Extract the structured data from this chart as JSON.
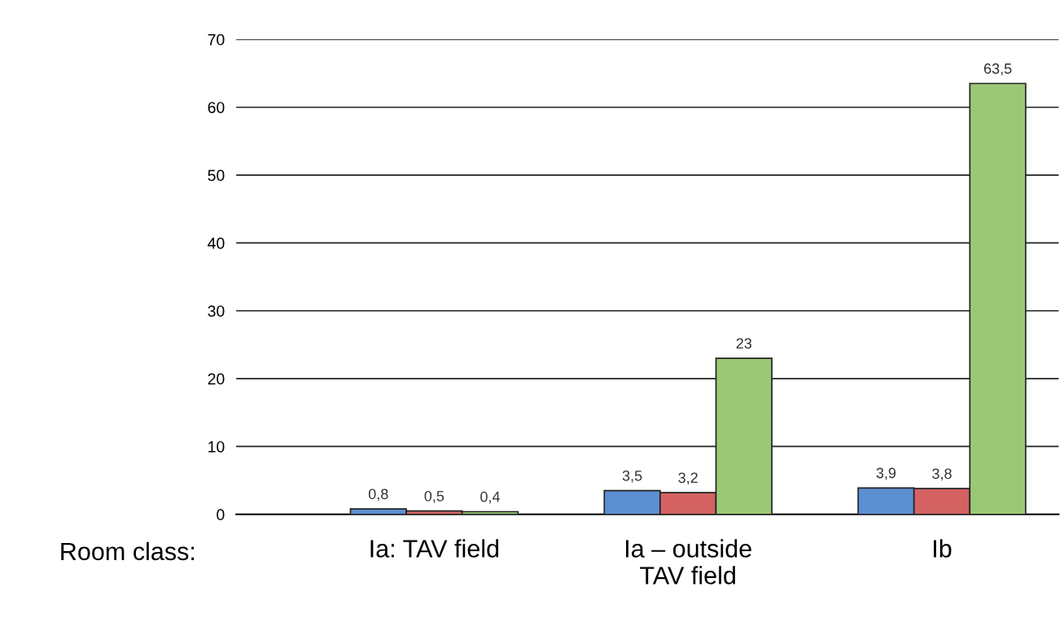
{
  "chart_data": {
    "type": "bar",
    "categories": [
      "Ia: TAV field",
      "Ia – outside\nTAV field",
      "Ib"
    ],
    "series": [
      {
        "color": "#5b8fd2",
        "values": [
          0.8,
          3.5,
          3.9
        ],
        "value_labels": [
          "0,8",
          "3,5",
          "3,9"
        ]
      },
      {
        "color": "#d46262",
        "values": [
          0.5,
          3.2,
          3.8
        ],
        "value_labels": [
          "0,5",
          "3,2",
          "3,8"
        ]
      },
      {
        "color": "#9bc875",
        "values": [
          0.4,
          23,
          63.5
        ],
        "value_labels": [
          "0,4",
          "23",
          "63,5"
        ]
      }
    ],
    "ylim": [
      0,
      70
    ],
    "yticks": [
      0,
      10,
      20,
      30,
      40,
      50,
      60,
      70
    ],
    "grid": "y",
    "annotations": [
      "Room class:"
    ]
  }
}
